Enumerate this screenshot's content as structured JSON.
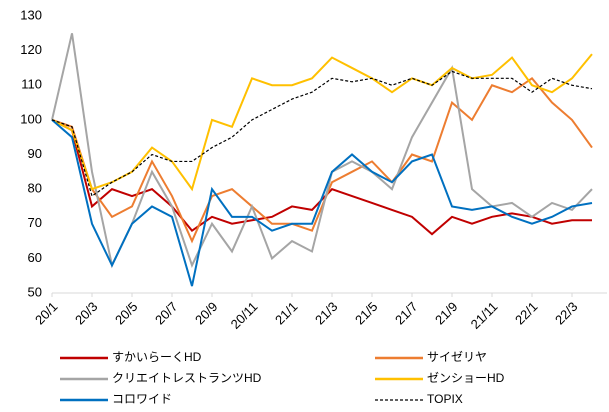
{
  "chart_data": {
    "type": "line",
    "categories": [
      "20/1",
      null,
      "20/3",
      null,
      "20/5",
      null,
      "20/7",
      null,
      "20/9",
      null,
      "20/11",
      null,
      "21/1",
      null,
      "21/3",
      null,
      "21/5",
      null,
      "21/7",
      null,
      "21/9",
      null,
      "21/11",
      null,
      "22/1",
      null,
      "22/3",
      null
    ],
    "series": [
      {
        "name": "すかいらーくHD",
        "color": "#c00000",
        "dashed": false,
        "values": [
          100,
          97,
          75,
          80,
          78,
          80,
          75,
          68,
          72,
          70,
          71,
          72,
          75,
          74,
          80,
          78,
          76,
          74,
          72,
          67,
          72,
          70,
          72,
          73,
          72,
          70,
          71,
          71
        ]
      },
      {
        "name": "サイゼリヤ",
        "color": "#ed7d31",
        "dashed": false,
        "values": [
          100,
          98,
          80,
          72,
          75,
          88,
          78,
          65,
          78,
          80,
          75,
          70,
          70,
          68,
          82,
          85,
          88,
          82,
          90,
          88,
          105,
          100,
          110,
          108,
          112,
          105,
          100,
          92
        ]
      },
      {
        "name": "クリエイトレストランツHD",
        "color": "#a5a5a5",
        "dashed": false,
        "values": [
          100,
          125,
          85,
          58,
          70,
          85,
          75,
          58,
          70,
          62,
          75,
          60,
          65,
          62,
          85,
          88,
          85,
          80,
          95,
          105,
          115,
          80,
          75,
          76,
          72,
          76,
          74,
          80
        ]
      },
      {
        "name": "ゼンショーHD",
        "color": "#ffc000",
        "dashed": false,
        "values": [
          100,
          97,
          80,
          82,
          85,
          92,
          88,
          80,
          100,
          98,
          112,
          110,
          110,
          112,
          118,
          115,
          112,
          108,
          112,
          110,
          115,
          112,
          113,
          118,
          110,
          108,
          112,
          119
        ]
      },
      {
        "name": "コロワイド",
        "color": "#0070c0",
        "dashed": false,
        "values": [
          100,
          95,
          70,
          58,
          70,
          75,
          72,
          52,
          80,
          72,
          72,
          68,
          70,
          70,
          85,
          90,
          85,
          82,
          88,
          90,
          75,
          74,
          75,
          72,
          70,
          72,
          75,
          76
        ]
      },
      {
        "name": "TOPIX",
        "color": "#000000",
        "dashed": true,
        "values": [
          100,
          98,
          78,
          82,
          85,
          90,
          88,
          88,
          92,
          95,
          100,
          103,
          106,
          108,
          112,
          111,
          112,
          110,
          112,
          110,
          114,
          112,
          112,
          112,
          108,
          112,
          110,
          109
        ]
      }
    ],
    "ylim": [
      50,
      130
    ],
    "yticks": [
      50,
      60,
      70,
      80,
      90,
      100,
      110,
      120,
      130
    ],
    "grid": false,
    "legend": "bottom"
  }
}
